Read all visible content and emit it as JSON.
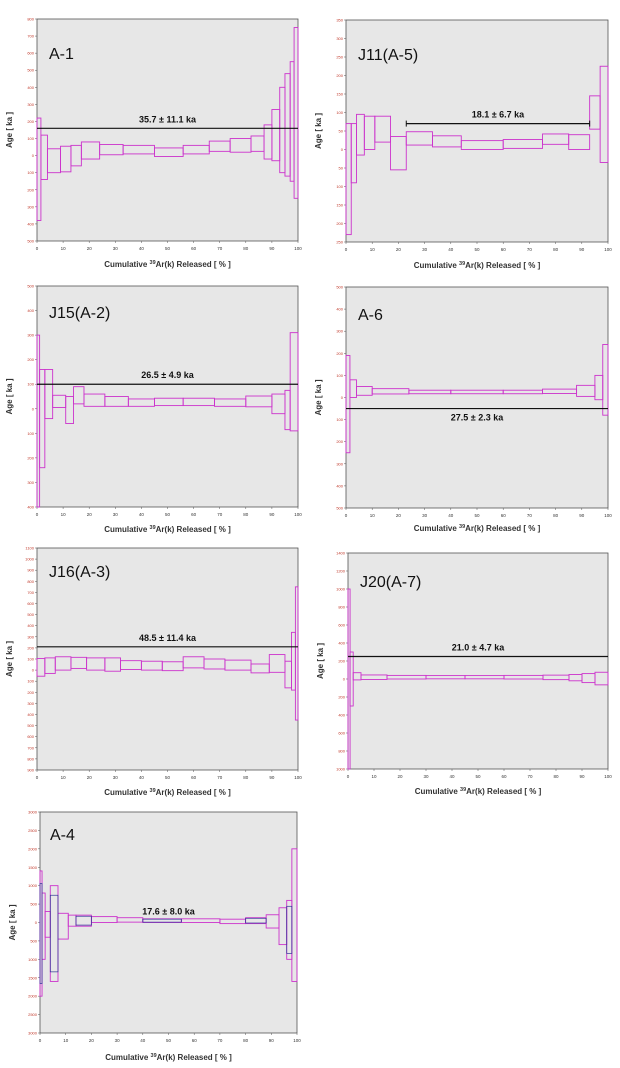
{
  "chart_data": [
    {
      "type": "step",
      "title": "A-1",
      "xlabel": "Cumulative 39Ar(k) Released [ % ]",
      "ylabel": "Age [ ka ]",
      "ylim": [
        -500,
        800
      ],
      "yticks": [
        -500,
        -400,
        -300,
        -200,
        -100,
        0,
        100,
        200,
        300,
        400,
        500,
        600,
        700,
        800
      ],
      "xlim": [
        0,
        100
      ],
      "xticks": [
        0,
        10,
        20,
        30,
        40,
        50,
        60,
        70,
        80,
        90,
        100
      ],
      "plateau": {
        "label": "35.7 ± 11.1 ka",
        "age": 160,
        "x_start": 0,
        "x_end": 100
      },
      "steps": [
        {
          "x0": 0,
          "x1": 1.5,
          "center": -80,
          "err": 300
        },
        {
          "x0": 1.5,
          "x1": 4,
          "center": -10,
          "err": 130
        },
        {
          "x0": 4,
          "x1": 9,
          "center": -30,
          "err": 70
        },
        {
          "x0": 9,
          "x1": 13,
          "center": -20,
          "err": 75
        },
        {
          "x0": 13,
          "x1": 17,
          "center": 0,
          "err": 60
        },
        {
          "x0": 17,
          "x1": 24,
          "center": 30,
          "err": 50
        },
        {
          "x0": 24,
          "x1": 33,
          "center": 35,
          "err": 30
        },
        {
          "x0": 33,
          "x1": 45,
          "center": 35,
          "err": 25
        },
        {
          "x0": 45,
          "x1": 56,
          "center": 20,
          "err": 25
        },
        {
          "x0": 56,
          "x1": 66,
          "center": 35,
          "err": 25
        },
        {
          "x0": 66,
          "x1": 74,
          "center": 55,
          "err": 30
        },
        {
          "x0": 74,
          "x1": 82,
          "center": 60,
          "err": 40
        },
        {
          "x0": 82,
          "x1": 87,
          "center": 70,
          "err": 45
        },
        {
          "x0": 87,
          "x1": 90,
          "center": 80,
          "err": 100
        },
        {
          "x0": 90,
          "x1": 93,
          "center": 120,
          "err": 150
        },
        {
          "x0": 93,
          "x1": 95,
          "center": 150,
          "err": 250
        },
        {
          "x0": 95,
          "x1": 97,
          "center": 180,
          "err": 300
        },
        {
          "x0": 97,
          "x1": 98.5,
          "center": 200,
          "err": 350
        },
        {
          "x0": 98.5,
          "x1": 100,
          "center": 250,
          "err": 500
        }
      ]
    },
    {
      "type": "step",
      "title": "J11(A-5)",
      "xlabel": "Cumulative 39Ar(k) Released [ % ]",
      "ylabel": "Age [ ka ]",
      "ylim": [
        -250,
        350
      ],
      "yticks": [
        -250,
        -200,
        -150,
        -100,
        -50,
        0,
        50,
        100,
        150,
        200,
        250,
        300,
        350
      ],
      "xlim": [
        0,
        100
      ],
      "xticks": [
        0,
        10,
        20,
        30,
        40,
        50,
        60,
        70,
        80,
        90,
        100
      ],
      "plateau": {
        "label": "18.1 ± 6.7 ka",
        "age": 70,
        "x_start": 23,
        "x_end": 93
      },
      "steps": [
        {
          "x0": 0,
          "x1": 2,
          "center": -80,
          "err": 150
        },
        {
          "x0": 2,
          "x1": 4,
          "center": -10,
          "err": 80
        },
        {
          "x0": 4,
          "x1": 7,
          "center": 40,
          "err": 55
        },
        {
          "x0": 7,
          "x1": 11,
          "center": 45,
          "err": 45
        },
        {
          "x0": 11,
          "x1": 17,
          "center": 55,
          "err": 35
        },
        {
          "x0": 17,
          "x1": 23,
          "center": -10,
          "err": 45
        },
        {
          "x0": 23,
          "x1": 33,
          "center": 30,
          "err": 18
        },
        {
          "x0": 33,
          "x1": 44,
          "center": 22,
          "err": 15
        },
        {
          "x0": 44,
          "x1": 60,
          "center": 12,
          "err": 12
        },
        {
          "x0": 60,
          "x1": 75,
          "center": 15,
          "err": 12
        },
        {
          "x0": 75,
          "x1": 85,
          "center": 28,
          "err": 14
        },
        {
          "x0": 85,
          "x1": 93,
          "center": 20,
          "err": 20
        },
        {
          "x0": 93,
          "x1": 97,
          "center": 100,
          "err": 45
        },
        {
          "x0": 97,
          "x1": 100,
          "center": 95,
          "err": 130
        }
      ]
    },
    {
      "type": "step",
      "title": "J15(A-2)",
      "xlabel": "Cumulative 39Ar(k) Released [ % ]",
      "ylabel": "Age [ ka ]",
      "ylim": [
        -400,
        500
      ],
      "yticks": [
        -400,
        -300,
        -200,
        -100,
        0,
        100,
        200,
        300,
        400,
        500
      ],
      "xlim": [
        0,
        100
      ],
      "xticks": [
        0,
        10,
        20,
        30,
        40,
        50,
        60,
        70,
        80,
        90,
        100
      ],
      "plateau": {
        "label": "26.5 ± 4.9 ka",
        "age": 100,
        "x_start": 0,
        "x_end": 100
      },
      "steps": [
        {
          "x0": 0,
          "x1": 1,
          "center": -50,
          "err": 350
        },
        {
          "x0": 1,
          "x1": 3,
          "center": -40,
          "err": 200
        },
        {
          "x0": 3,
          "x1": 6,
          "center": 60,
          "err": 100
        },
        {
          "x0": 6,
          "x1": 11,
          "center": 30,
          "err": 25
        },
        {
          "x0": 11,
          "x1": 14,
          "center": -5,
          "err": 55
        },
        {
          "x0": 14,
          "x1": 18,
          "center": 55,
          "err": 35
        },
        {
          "x0": 18,
          "x1": 26,
          "center": 35,
          "err": 25
        },
        {
          "x0": 26,
          "x1": 35,
          "center": 30,
          "err": 20
        },
        {
          "x0": 35,
          "x1": 45,
          "center": 25,
          "err": 15
        },
        {
          "x0": 45,
          "x1": 56,
          "center": 28,
          "err": 15
        },
        {
          "x0": 56,
          "x1": 68,
          "center": 28,
          "err": 15
        },
        {
          "x0": 68,
          "x1": 80,
          "center": 25,
          "err": 15
        },
        {
          "x0": 80,
          "x1": 90,
          "center": 30,
          "err": 22
        },
        {
          "x0": 90,
          "x1": 95,
          "center": 20,
          "err": 40
        },
        {
          "x0": 95,
          "x1": 97,
          "center": -5,
          "err": 80
        },
        {
          "x0": 97,
          "x1": 100,
          "center": 110,
          "err": 200
        }
      ]
    },
    {
      "type": "step",
      "title": "A-6",
      "xlabel": "Cumulative 39Ar(k) Released [ % ]",
      "ylabel": "Age [ ka ]",
      "ylim": [
        -500,
        500
      ],
      "yticks": [
        -500,
        -400,
        -300,
        -200,
        -100,
        0,
        100,
        200,
        300,
        400,
        500
      ],
      "xlim": [
        0,
        100
      ],
      "xticks": [
        0,
        10,
        20,
        30,
        40,
        50,
        60,
        70,
        80,
        90,
        100
      ],
      "plateau": {
        "label": "27.5 ± 2.3 ka",
        "age": -50,
        "x_start": 0,
        "x_end": 100
      },
      "steps": [
        {
          "x0": 0,
          "x1": 1.5,
          "center": -30,
          "err": 220
        },
        {
          "x0": 1.5,
          "x1": 4,
          "center": 40,
          "err": 40
        },
        {
          "x0": 4,
          "x1": 10,
          "center": 30,
          "err": 20
        },
        {
          "x0": 10,
          "x1": 24,
          "center": 28,
          "err": 12
        },
        {
          "x0": 24,
          "x1": 40,
          "center": 25,
          "err": 8
        },
        {
          "x0": 40,
          "x1": 60,
          "center": 25,
          "err": 8
        },
        {
          "x0": 60,
          "x1": 75,
          "center": 25,
          "err": 8
        },
        {
          "x0": 75,
          "x1": 88,
          "center": 28,
          "err": 10
        },
        {
          "x0": 88,
          "x1": 95,
          "center": 30,
          "err": 25
        },
        {
          "x0": 95,
          "x1": 98,
          "center": 45,
          "err": 55
        },
        {
          "x0": 98,
          "x1": 100,
          "center": 80,
          "err": 160
        }
      ]
    },
    {
      "type": "step",
      "title": "J16(A-3)",
      "xlabel": "Cumulative 39Ar(k) Released [ % ]",
      "ylabel": "Age [ ka ]",
      "ylim": [
        -900,
        1100
      ],
      "yticks": [
        -900,
        -800,
        -700,
        -600,
        -500,
        -400,
        -300,
        -200,
        -100,
        0,
        100,
        200,
        300,
        400,
        500,
        600,
        700,
        800,
        900,
        1000,
        1100
      ],
      "xlim": [
        0,
        100
      ],
      "xticks": [
        0,
        10,
        20,
        30,
        40,
        50,
        60,
        70,
        80,
        90,
        100
      ],
      "plateau": {
        "label": "48.5 ± 11.4 ka",
        "age": 210,
        "x_start": 0,
        "x_end": 100
      },
      "steps": [
        {
          "x0": 0,
          "x1": 3,
          "center": 25,
          "err": 80
        },
        {
          "x0": 3,
          "x1": 7,
          "center": 40,
          "err": 70
        },
        {
          "x0": 7,
          "x1": 13,
          "center": 60,
          "err": 60
        },
        {
          "x0": 13,
          "x1": 19,
          "center": 65,
          "err": 50
        },
        {
          "x0": 19,
          "x1": 26,
          "center": 55,
          "err": 55
        },
        {
          "x0": 26,
          "x1": 32,
          "center": 50,
          "err": 60
        },
        {
          "x0": 32,
          "x1": 40,
          "center": 45,
          "err": 40
        },
        {
          "x0": 40,
          "x1": 48,
          "center": 40,
          "err": 40
        },
        {
          "x0": 48,
          "x1": 56,
          "center": 35,
          "err": 40
        },
        {
          "x0": 56,
          "x1": 64,
          "center": 70,
          "err": 50
        },
        {
          "x0": 64,
          "x1": 72,
          "center": 55,
          "err": 45
        },
        {
          "x0": 72,
          "x1": 82,
          "center": 45,
          "err": 45
        },
        {
          "x0": 82,
          "x1": 89,
          "center": 15,
          "err": 40
        },
        {
          "x0": 89,
          "x1": 95,
          "center": 60,
          "err": 80
        },
        {
          "x0": 95,
          "x1": 97.5,
          "center": -40,
          "err": 120
        },
        {
          "x0": 97.5,
          "x1": 99,
          "center": 80,
          "err": 260
        },
        {
          "x0": 99,
          "x1": 100,
          "center": 150,
          "err": 600
        }
      ]
    },
    {
      "type": "step",
      "title": "J20(A-7)",
      "xlabel": "Cumulative 39Ar(k) Released [ % ]",
      "ylabel": "Age [ ka ]",
      "ylim": [
        -1000,
        1400
      ],
      "yticks": [
        -1000,
        -800,
        -600,
        -400,
        -200,
        0,
        200,
        400,
        600,
        800,
        1000,
        1200,
        1400
      ],
      "xlim": [
        0,
        100
      ],
      "xticks": [
        0,
        10,
        20,
        30,
        40,
        50,
        60,
        70,
        80,
        90,
        100
      ],
      "plateau": {
        "label": "21.0 ± 4.7 ka",
        "age": 250,
        "x_start": 0,
        "x_end": 100
      },
      "steps": [
        {
          "x0": 0,
          "x1": 0.8,
          "center": -100,
          "err": 1100
        },
        {
          "x0": 0.8,
          "x1": 2,
          "center": 0,
          "err": 300
        },
        {
          "x0": 2,
          "x1": 5,
          "center": 30,
          "err": 40
        },
        {
          "x0": 5,
          "x1": 15,
          "center": 20,
          "err": 25
        },
        {
          "x0": 15,
          "x1": 30,
          "center": 20,
          "err": 20
        },
        {
          "x0": 30,
          "x1": 45,
          "center": 20,
          "err": 18
        },
        {
          "x0": 45,
          "x1": 60,
          "center": 20,
          "err": 18
        },
        {
          "x0": 60,
          "x1": 75,
          "center": 20,
          "err": 20
        },
        {
          "x0": 75,
          "x1": 85,
          "center": 18,
          "err": 25
        },
        {
          "x0": 85,
          "x1": 90,
          "center": 15,
          "err": 35
        },
        {
          "x0": 90,
          "x1": 95,
          "center": 10,
          "err": 50
        },
        {
          "x0": 95,
          "x1": 100,
          "center": 5,
          "err": 70
        }
      ]
    },
    {
      "type": "step",
      "title": "A-4",
      "xlabel": "Cumulative 39Ar(k) Released [ % ]",
      "ylabel": "Age [ ka ]",
      "ylim": [
        -3000,
        3000
      ],
      "yticks": [
        -3000,
        -2500,
        -2000,
        -1500,
        -1000,
        -500,
        0,
        500,
        1000,
        1500,
        2000,
        2500,
        3000
      ],
      "xlim": [
        0,
        100
      ],
      "xticks": [
        0,
        10,
        20,
        30,
        40,
        50,
        60,
        70,
        80,
        90,
        100
      ],
      "plateau": {
        "label": "17.6 ± 8.0 ka",
        "age": 0,
        "x_start": 0,
        "x_end": 100,
        "hidden_line": true
      },
      "steps": [
        {
          "x0": 0,
          "x1": 0.8,
          "center": -300,
          "err": 1700
        },
        {
          "x0": 0.8,
          "x1": 2,
          "center": -100,
          "err": 900
        },
        {
          "x0": 2,
          "x1": 4,
          "center": -50,
          "err": 350
        },
        {
          "x0": 4,
          "x1": 7,
          "center": -300,
          "err": 1300
        },
        {
          "x0": 7,
          "x1": 11,
          "center": -100,
          "err": 350
        },
        {
          "x0": 11,
          "x1": 14,
          "center": 50,
          "err": 150
        },
        {
          "x0": 14,
          "x1": 20,
          "center": 50,
          "err": 150
        },
        {
          "x0": 20,
          "x1": 30,
          "center": 80,
          "err": 80
        },
        {
          "x0": 30,
          "x1": 40,
          "center": 70,
          "err": 60
        },
        {
          "x0": 40,
          "x1": 55,
          "center": 50,
          "err": 50
        },
        {
          "x0": 55,
          "x1": 70,
          "center": 50,
          "err": 50
        },
        {
          "x0": 70,
          "x1": 80,
          "center": 30,
          "err": 60
        },
        {
          "x0": 80,
          "x1": 88,
          "center": 50,
          "err": 80
        },
        {
          "x0": 88,
          "x1": 93,
          "center": 30,
          "err": 180
        },
        {
          "x0": 93,
          "x1": 96,
          "center": -100,
          "err": 500
        },
        {
          "x0": 96,
          "x1": 98,
          "center": -200,
          "err": 800
        },
        {
          "x0": 98,
          "x1": 100,
          "center": 200,
          "err": 1800
        }
      ]
    }
  ]
}
